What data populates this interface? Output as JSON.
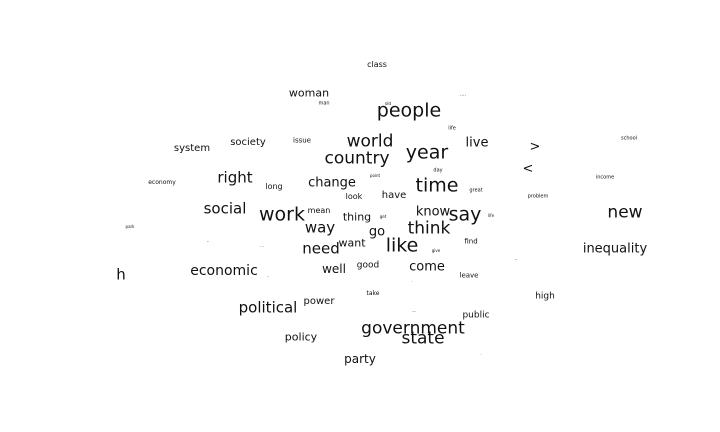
{
  "words": [
    {
      "text": "class"
    },
    {
      "text": "woman"
    },
    {
      "text": "man"
    },
    {
      "text": "old"
    },
    {
      "text": "people"
    },
    {
      "text": "...."
    },
    {
      "text": "life"
    },
    {
      "text": "world"
    },
    {
      "text": "live"
    },
    {
      "text": "country"
    },
    {
      "text": "year"
    },
    {
      "text": "system"
    },
    {
      "text": "society"
    },
    {
      "text": "issue"
    },
    {
      "text": ">"
    },
    {
      "text": "school"
    },
    {
      "text": "<"
    },
    {
      "text": "day"
    },
    {
      "text": "right"
    },
    {
      "text": "point"
    },
    {
      "text": "economy"
    },
    {
      "text": "long"
    },
    {
      "text": "change"
    },
    {
      "text": "time"
    },
    {
      "text": "income"
    },
    {
      "text": "great"
    },
    {
      "text": "look"
    },
    {
      "text": "have"
    },
    {
      "text": "problem"
    },
    {
      "text": "social"
    },
    {
      "text": "mean"
    },
    {
      "text": "work"
    },
    {
      "text": "know"
    },
    {
      "text": "say"
    },
    {
      "text": "new"
    },
    {
      "text": "thing"
    },
    {
      "text": "get"
    },
    {
      "text": "life"
    },
    {
      "text": "park"
    },
    {
      "text": "way"
    },
    {
      "text": "think"
    },
    {
      "text": "go"
    },
    {
      "text": "want"
    },
    {
      "text": "like"
    },
    {
      "text": "find"
    },
    {
      "text": "..."
    },
    {
      "text": "need"
    },
    {
      "text": "."
    },
    {
      "text": "give"
    },
    {
      "text": "inequality"
    },
    {
      "text": "good"
    },
    {
      "text": "well"
    },
    {
      "text": "come"
    },
    {
      "text": "economic"
    },
    {
      "text": "h"
    },
    {
      "text": "-"
    },
    {
      "text": "leave"
    },
    {
      "text": "."
    },
    {
      "text": "."
    },
    {
      "text": "take"
    },
    {
      "text": "high"
    },
    {
      "text": "power"
    },
    {
      "text": "political"
    },
    {
      "text": "...."
    },
    {
      "text": "public"
    },
    {
      "text": "government"
    },
    {
      "text": "policy"
    },
    {
      "text": "state"
    },
    {
      "text": "party"
    },
    {
      "text": "."
    }
  ]
}
